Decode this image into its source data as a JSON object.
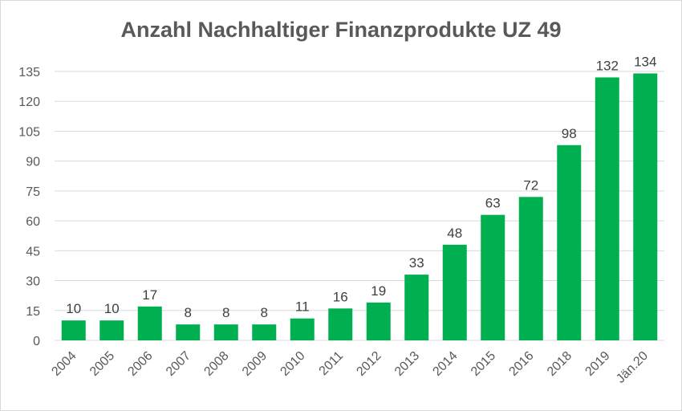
{
  "chart_data": {
    "type": "bar",
    "title": "Anzahl Nachhaltiger Finanzprodukte UZ 49",
    "xlabel": "",
    "ylabel": "",
    "categories": [
      "2004",
      "2005",
      "2006",
      "2007",
      "2008",
      "2009",
      "2010",
      "2011",
      "2012",
      "2013",
      "2014",
      "2015",
      "2016",
      "2018",
      "2019",
      "Jän.20"
    ],
    "values": [
      10,
      10,
      17,
      8,
      8,
      8,
      11,
      16,
      19,
      33,
      48,
      63,
      72,
      98,
      132,
      134
    ],
    "ylim": [
      0,
      135
    ],
    "yticks": [
      0,
      15,
      30,
      45,
      60,
      75,
      90,
      105,
      120,
      135
    ],
    "grid": true,
    "legend": "none",
    "bar_color": "#00b050",
    "grid_color": "#d9d9d9"
  }
}
